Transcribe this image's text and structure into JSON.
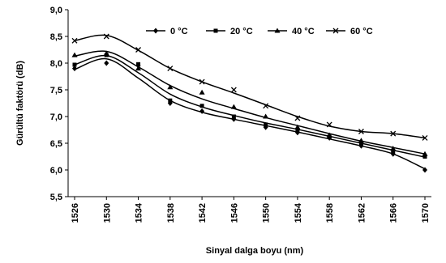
{
  "chart_data": {
    "type": "line",
    "xlabel": "Sinyal dalga boyu (nm)",
    "ylabel": "Gürültü faktörü (dB)",
    "xlim": [
      1526,
      1570
    ],
    "ylim": [
      5.5,
      9.0
    ],
    "x_ticks": [
      1526,
      1530,
      1534,
      1538,
      1542,
      1546,
      1550,
      1554,
      1558,
      1562,
      1566,
      1570
    ],
    "y_ticks": [
      "5,5",
      "6,0",
      "6,5",
      "7,0",
      "7,5",
      "8,0",
      "8,5",
      "9,0"
    ],
    "grid": false,
    "legend_position": "top-right",
    "series": [
      {
        "name": "0 °C",
        "marker": "diamond",
        "color": "#000000",
        "x": [
          1526,
          1530,
          1534,
          1538,
          1542,
          1546,
          1550,
          1554,
          1558,
          1562,
          1566,
          1570
        ],
        "y": [
          7.9,
          8.0,
          7.95,
          7.25,
          7.1,
          6.95,
          6.8,
          6.7,
          6.6,
          6.45,
          6.3,
          6.0
        ],
        "fit_y": [
          7.88,
          8.08,
          7.72,
          7.3,
          7.08,
          6.95,
          6.83,
          6.71,
          6.58,
          6.45,
          6.3,
          6.02
        ]
      },
      {
        "name": "20 °C",
        "marker": "square",
        "color": "#000000",
        "x": [
          1526,
          1530,
          1534,
          1538,
          1542,
          1546,
          1550,
          1554,
          1558,
          1562,
          1566,
          1570
        ],
        "y": [
          7.97,
          8.15,
          7.98,
          7.3,
          7.2,
          7.0,
          6.85,
          6.75,
          6.62,
          6.5,
          6.35,
          6.25
        ],
        "fit_y": [
          7.97,
          8.14,
          7.82,
          7.42,
          7.18,
          7.02,
          6.88,
          6.76,
          6.63,
          6.5,
          6.37,
          6.24
        ]
      },
      {
        "name": "40 °C",
        "marker": "triangle",
        "color": "#000000",
        "x": [
          1526,
          1530,
          1534,
          1538,
          1542,
          1546,
          1550,
          1554,
          1558,
          1562,
          1566,
          1570
        ],
        "y": [
          8.15,
          8.18,
          7.9,
          7.55,
          7.45,
          7.18,
          7.0,
          6.8,
          6.65,
          6.55,
          6.4,
          6.3
        ],
        "fit_y": [
          8.13,
          8.22,
          7.93,
          7.58,
          7.33,
          7.15,
          6.98,
          6.83,
          6.68,
          6.54,
          6.42,
          6.3
        ]
      },
      {
        "name": "60 °C",
        "marker": "x",
        "color": "#000000",
        "x": [
          1526,
          1530,
          1534,
          1538,
          1542,
          1546,
          1550,
          1554,
          1558,
          1562,
          1566,
          1570
        ],
        "y": [
          8.42,
          8.5,
          8.25,
          7.9,
          7.65,
          7.5,
          7.2,
          6.97,
          6.85,
          6.72,
          6.68,
          6.6
        ],
        "fit_y": [
          8.42,
          8.52,
          8.24,
          7.9,
          7.65,
          7.44,
          7.22,
          7.0,
          6.82,
          6.72,
          6.68,
          6.6
        ]
      }
    ]
  }
}
